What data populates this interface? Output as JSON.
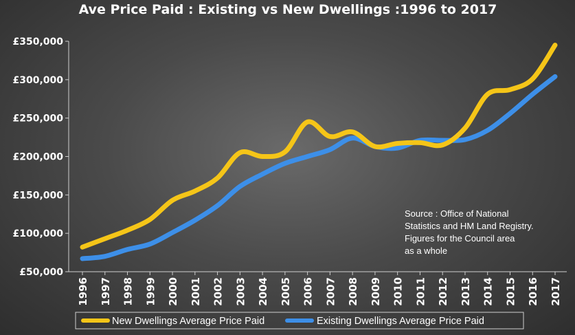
{
  "chart_data": {
    "type": "line",
    "title": "Ave Price Paid : Existing vs New Dwellings :1996 to 2017",
    "x": [
      "1996",
      "1997",
      "1998",
      "1999",
      "2000",
      "2001",
      "2002",
      "2003",
      "2004",
      "2005",
      "2006",
      "2007",
      "2008",
      "2009",
      "2010",
      "2011",
      "2012",
      "2013",
      "2014",
      "2015",
      "2016",
      "2017"
    ],
    "y_ticks": [
      "£50,000",
      "£100,000",
      "£150,000",
      "£200,000",
      "£250,000",
      "£300,000",
      "£350,000"
    ],
    "ylim": [
      50000,
      350000
    ],
    "series": [
      {
        "name": "New Dwellings Average Price Paid",
        "color": "#f5c518",
        "values": [
          82000,
          93000,
          104000,
          118000,
          143000,
          155000,
          172000,
          205000,
          200000,
          206000,
          245000,
          226000,
          232000,
          213000,
          217000,
          218000,
          215000,
          237000,
          281000,
          287000,
          301000,
          345000
        ]
      },
      {
        "name": "Existing Dwellings Average Price Paid",
        "color": "#3d8fe8",
        "values": [
          67000,
          70000,
          79000,
          86000,
          101000,
          117000,
          136000,
          161000,
          177000,
          191000,
          200000,
          209000,
          224000,
          213000,
          211000,
          221000,
          221000,
          222000,
          234000,
          256000,
          281000,
          304000
        ]
      }
    ],
    "grid": false,
    "legend_position": "bottom",
    "annotation": [
      "Source : Office of National",
      "Statistics and HM Land Registry.",
      "Figures for the Council area",
      "as a whole"
    ]
  }
}
